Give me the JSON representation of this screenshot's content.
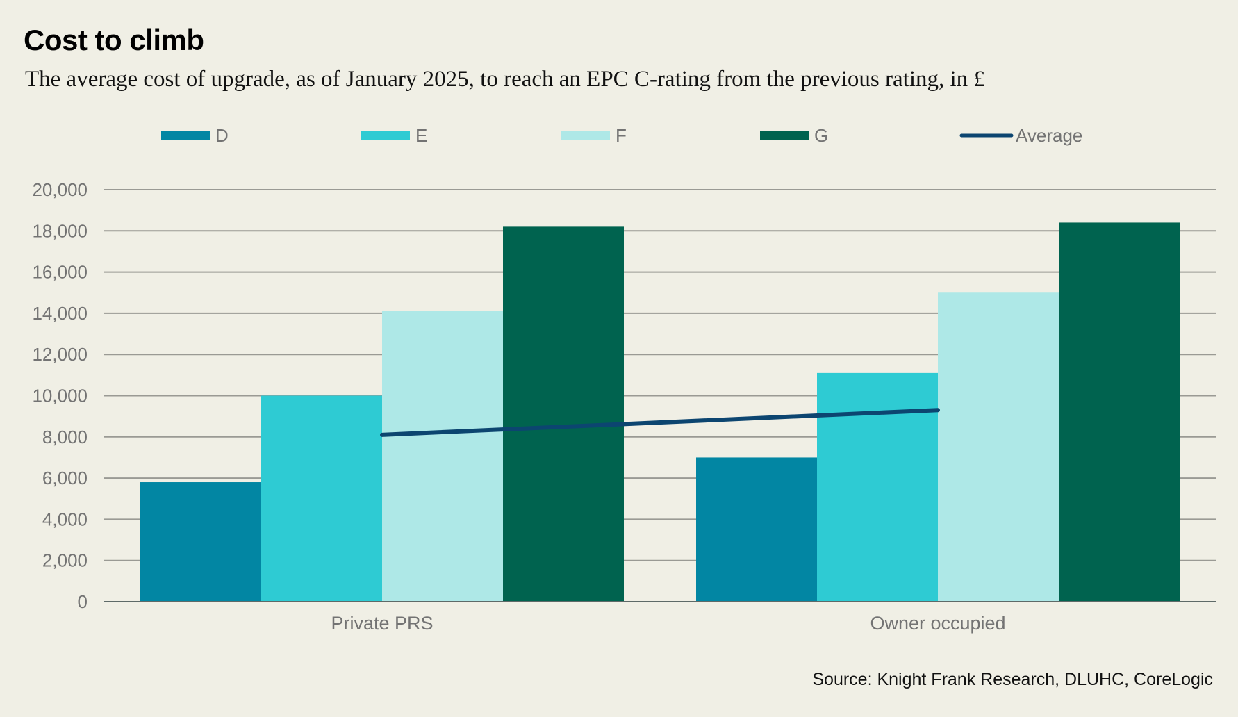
{
  "header": {
    "title": "Cost to climb",
    "subtitle": "The average cost of upgrade, as of January 2025, to reach an EPC C-rating from the previous rating, in £"
  },
  "footer": {
    "source": "Source: Knight Frank Research, DLUHC, CoreLogic"
  },
  "chart_data": {
    "type": "bar",
    "title": "Cost to climb",
    "subtitle": "The average cost of upgrade, as of January 2025, to reach an EPC C-rating from the previous rating, in £",
    "xlabel": "",
    "ylabel": "",
    "categories": [
      "Private PRS",
      "Owner occupied"
    ],
    "series": [
      {
        "name": "D",
        "type": "bar",
        "color": "#0286a3",
        "values": [
          5800,
          7000
        ]
      },
      {
        "name": "E",
        "type": "bar",
        "color": "#2ecbd3",
        "values": [
          10000,
          11100
        ]
      },
      {
        "name": "F",
        "type": "bar",
        "color": "#aee8e7",
        "values": [
          14100,
          15000
        ]
      },
      {
        "name": "G",
        "type": "bar",
        "color": "#00634f",
        "values": [
          18200,
          18400
        ]
      },
      {
        "name": "Average",
        "type": "line",
        "color": "#0c4570",
        "values": [
          8100,
          9300
        ]
      }
    ],
    "ylim": [
      0,
      20000
    ],
    "yticks": [
      0,
      2000,
      4000,
      6000,
      8000,
      10000,
      12000,
      14000,
      16000,
      18000,
      20000
    ],
    "ytick_labels": [
      "0",
      "2,000",
      "4,000",
      "6,000",
      "8,000",
      "10,000",
      "12,000",
      "14,000",
      "16,000",
      "18,000",
      "20,000"
    ],
    "grid": true,
    "legend_position": "top"
  }
}
